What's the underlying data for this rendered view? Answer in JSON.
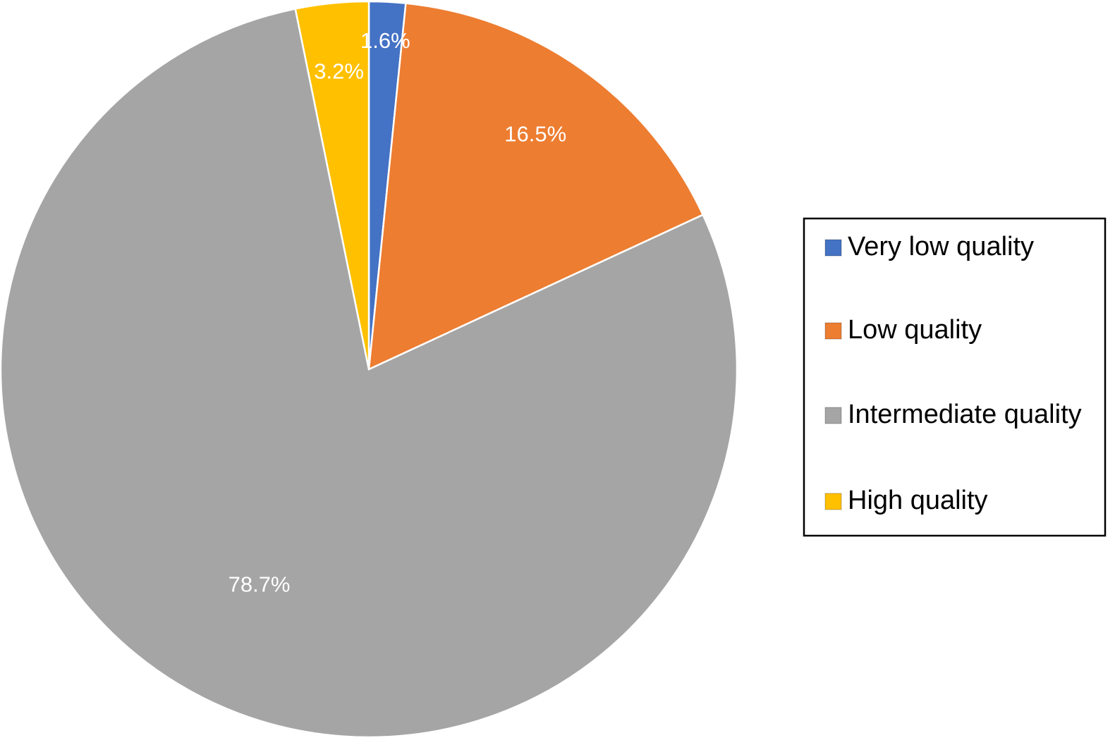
{
  "chart_data": {
    "type": "pie",
    "categories": [
      "Very low quality",
      "Low quality",
      "Intermediate quality",
      "High quality"
    ],
    "values": [
      1.6,
      16.5,
      78.7,
      3.2
    ],
    "value_labels": [
      "1.6%",
      "16.5%",
      "78.7%",
      "3.2%"
    ],
    "colors": [
      "#4472c4",
      "#ed7d31",
      "#a5a5a5",
      "#ffc000"
    ],
    "legend": "right"
  }
}
